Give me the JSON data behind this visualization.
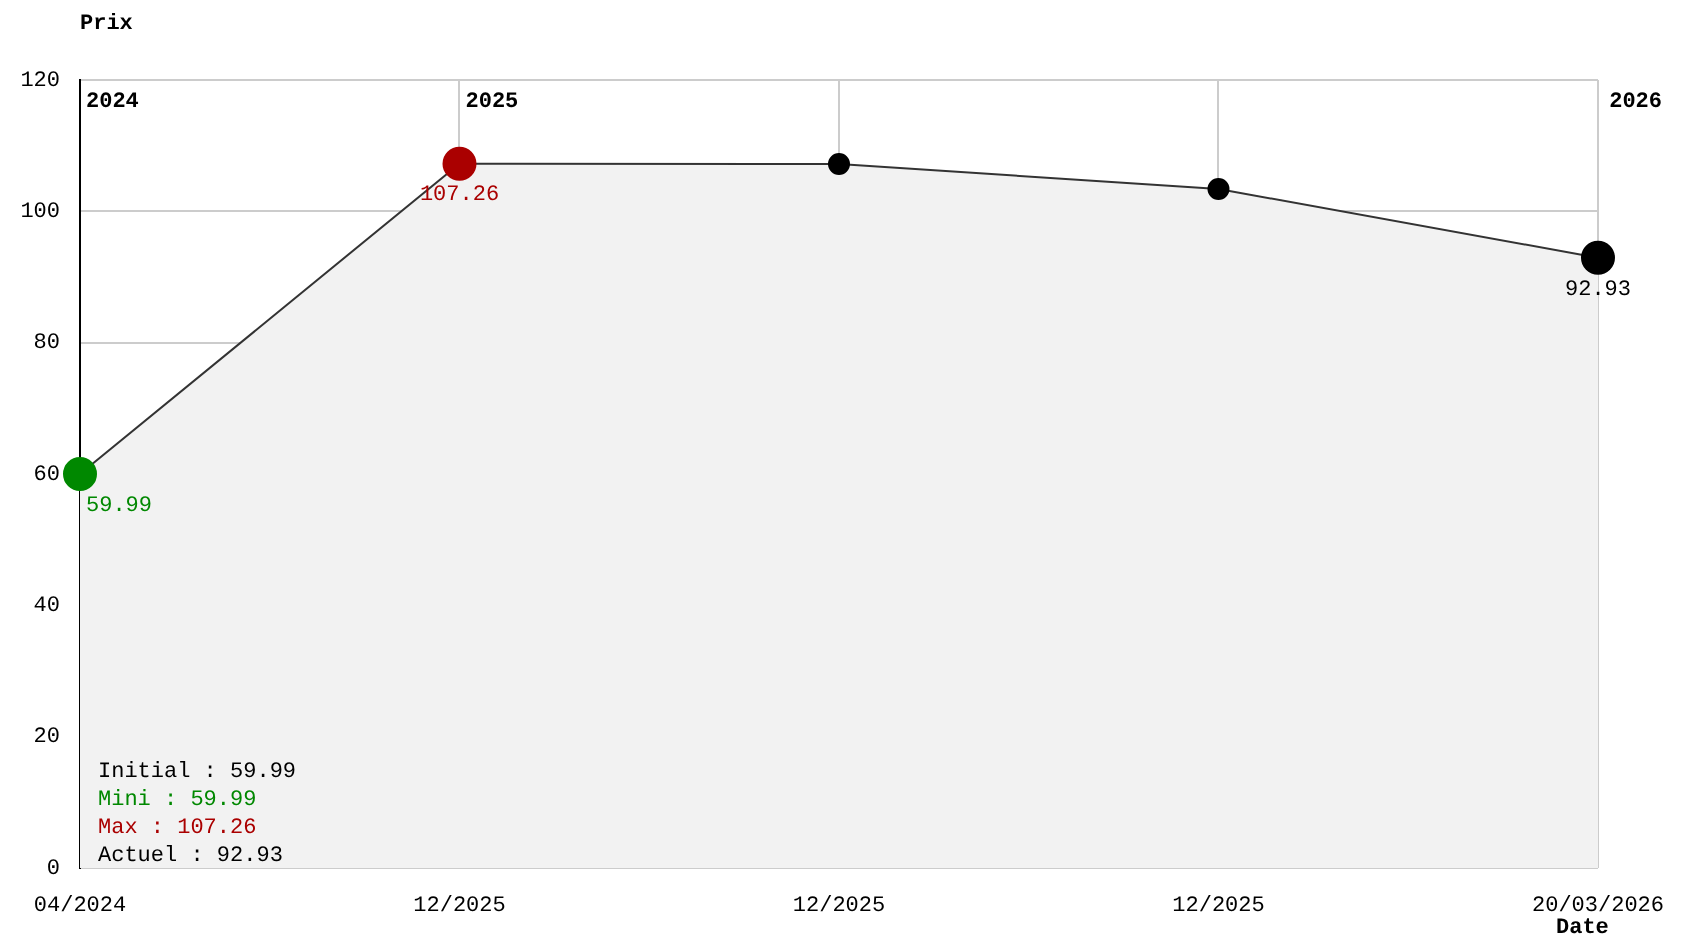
{
  "chart_data": {
    "type": "area",
    "ylabel": "Prix",
    "xlabel": "Date",
    "categories": [
      "04/2024",
      "12/2025",
      "12/2025",
      "12/2025",
      "20/03/2026"
    ],
    "series": [
      {
        "color": "#333333",
        "values": [
          59.99,
          107.26,
          107.2,
          103.4,
          92.93
        ],
        "colors": [
          "#008800",
          "#aa0000",
          "#000000",
          "#000000",
          "#000000"
        ],
        "value_labels": [
          "59.99",
          "107.26",
          null,
          null,
          "92.93"
        ]
      }
    ],
    "ylim": [
      0,
      120
    ],
    "yticks": [
      0,
      20,
      40,
      60,
      80,
      100,
      120
    ],
    "grid": true,
    "legend": false,
    "marker": "circle",
    "annotations": [
      "2024",
      "2025",
      "2026",
      "Initial : 59.99",
      "Mini : 59.99",
      "Max : 107.26",
      "Actuel : 92.93"
    ]
  }
}
